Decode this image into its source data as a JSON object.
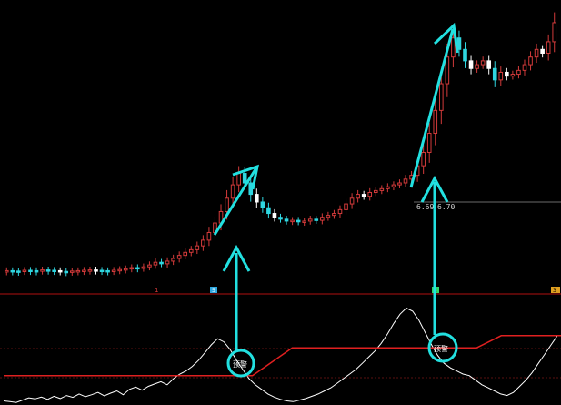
{
  "colors": {
    "background": "#000000",
    "up_candle": "#d23a3a",
    "down_candle": "#2fd6e0",
    "neutral_candle": "#ffffff",
    "annotation": "#22e0e0",
    "indicator_line": "#ffffff",
    "signal_line": "#e02020",
    "divider": "#b01010",
    "gridline": "#7a1212",
    "price_tag_text": "#cfcfcf"
  },
  "labels": {
    "price_tag_left": "6.69",
    "price_tag_right": "6.70",
    "signal_label_1": "预警",
    "signal_label_2": "预警",
    "marker_small_1": "1",
    "marker_small_2": "5",
    "marker_small_3": "2",
    "marker_small_4": "3"
  },
  "chart_data": [
    {
      "type": "candlestick",
      "title": "",
      "price_series": [
        3.3,
        3.29,
        3.28,
        3.31,
        3.3,
        3.29,
        3.32,
        3.31,
        3.3,
        3.28,
        3.27,
        3.29,
        3.3,
        3.31,
        3.32,
        3.31,
        3.3,
        3.29,
        3.31,
        3.33,
        3.35,
        3.38,
        3.36,
        3.4,
        3.45,
        3.52,
        3.48,
        3.55,
        3.62,
        3.7,
        3.78,
        3.85,
        3.95,
        4.1,
        4.3,
        4.55,
        4.85,
        5.2,
        5.55,
        5.85,
        5.6,
        5.3,
        5.1,
        4.95,
        4.8,
        4.7,
        4.65,
        4.6,
        4.62,
        4.58,
        4.6,
        4.65,
        4.62,
        4.7,
        4.75,
        4.8,
        4.9,
        5.05,
        5.2,
        5.3,
        5.25,
        5.35,
        5.4,
        5.45,
        5.5,
        5.55,
        5.6,
        5.7,
        5.8,
        6.05,
        6.4,
        6.9,
        7.5,
        8.2,
        8.9,
        9.4,
        9.1,
        8.8,
        8.6,
        8.7,
        8.8,
        8.6,
        8.3,
        8.5,
        8.4,
        8.45,
        8.55,
        8.7,
        8.9,
        9.1,
        9.0,
        9.3,
        9.8
      ]
    },
    {
      "type": "line",
      "title": "",
      "indicator_series": [
        0.15,
        0.1,
        0.05,
        0.2,
        0.35,
        0.28,
        0.4,
        0.25,
        0.45,
        0.3,
        0.5,
        0.38,
        0.6,
        0.42,
        0.55,
        0.7,
        0.48,
        0.65,
        0.8,
        0.55,
        0.9,
        1.05,
        0.85,
        1.1,
        1.25,
        1.4,
        1.2,
        1.6,
        1.9,
        2.1,
        2.4,
        2.8,
        3.3,
        3.8,
        4.2,
        4.0,
        3.5,
        2.8,
        2.2,
        1.6,
        1.2,
        0.9,
        0.6,
        0.4,
        0.25,
        0.15,
        0.1,
        0.2,
        0.3,
        0.45,
        0.6,
        0.8,
        1.0,
        1.3,
        1.6,
        1.9,
        2.2,
        2.6,
        3.0,
        3.4,
        3.9,
        4.5,
        5.2,
        5.8,
        6.2,
        6.0,
        5.4,
        4.6,
        3.8,
        3.1,
        2.6,
        2.3,
        2.1,
        1.9,
        1.8,
        1.5,
        1.2,
        1.0,
        0.8,
        0.6,
        0.5,
        0.7,
        1.1,
        1.5,
        2.0,
        2.6,
        3.2,
        3.8,
        4.4
      ],
      "signal_series": [
        [
          0,
          1.8
        ],
        [
          50,
          1.8
        ],
        [
          58,
          3.6
        ],
        [
          95,
          3.6
        ],
        [
          100,
          4.4
        ],
        [
          112,
          4.4
        ]
      ]
    }
  ]
}
